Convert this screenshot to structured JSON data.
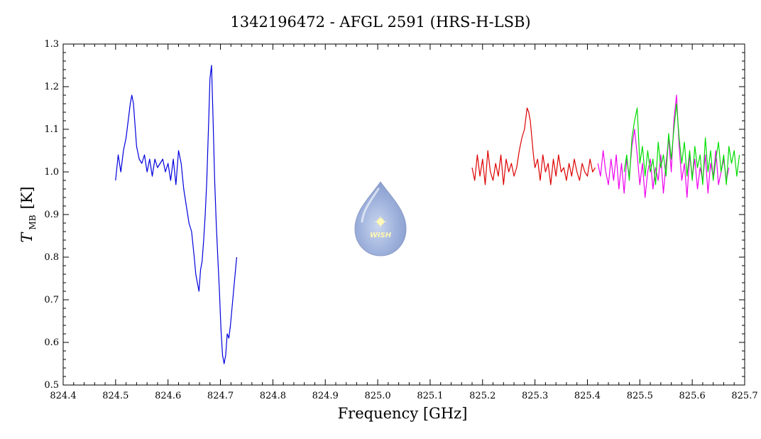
{
  "chart_data": {
    "type": "line",
    "title": "1342196472 - AFGL 2591 (HRS-H-LSB)",
    "xlabel": "Frequency [GHz]",
    "ylabel": {
      "main": "T",
      "sub": "MB",
      "unit": "[K]"
    },
    "xlim": [
      824.4,
      825.7
    ],
    "ylim": [
      0.5,
      1.3
    ],
    "xticks": [
      "824.4",
      "824.5",
      "824.6",
      "824.7",
      "824.8",
      "824.9",
      "825.0",
      "825.1",
      "825.2",
      "825.3",
      "825.4",
      "825.5",
      "825.6",
      "825.7"
    ],
    "yticks": [
      "0.5",
      "0.6",
      "0.7",
      "0.8",
      "0.9",
      "1.0",
      "1.1",
      "1.2",
      "1.3"
    ],
    "grid": false,
    "logo_text": "WISH",
    "series": [
      {
        "color": "#0000dd",
        "x": [
          824.5,
          824.505,
          824.51,
          824.515,
          824.52,
          824.525,
          824.528,
          824.531,
          824.534,
          824.537,
          824.54,
          824.545,
          824.55,
          824.555,
          824.56,
          824.565,
          824.57,
          824.575,
          824.58,
          824.585,
          824.59,
          824.595,
          824.6,
          824.605,
          824.61,
          824.615,
          824.62,
          824.625,
          824.63,
          824.635,
          824.64,
          824.645,
          824.65,
          824.653,
          824.656,
          824.659,
          824.662,
          824.665,
          824.668,
          824.671,
          824.674,
          824.677,
          824.68,
          824.683,
          824.686,
          824.689,
          824.692,
          824.695,
          824.698,
          824.701,
          824.704,
          824.707,
          824.71,
          824.713,
          824.716,
          824.719,
          824.722,
          824.725,
          824.728,
          824.731
        ],
        "y": [
          0.98,
          1.04,
          1.0,
          1.05,
          1.08,
          1.13,
          1.16,
          1.18,
          1.16,
          1.11,
          1.06,
          1.03,
          1.02,
          1.04,
          1.0,
          1.03,
          0.99,
          1.03,
          1.01,
          1.02,
          1.03,
          1.0,
          1.02,
          0.98,
          1.03,
          0.97,
          1.05,
          1.02,
          0.96,
          0.92,
          0.88,
          0.86,
          0.8,
          0.76,
          0.74,
          0.72,
          0.77,
          0.79,
          0.84,
          0.9,
          0.98,
          1.1,
          1.22,
          1.25,
          1.12,
          0.98,
          0.88,
          0.8,
          0.72,
          0.63,
          0.57,
          0.55,
          0.57,
          0.62,
          0.61,
          0.64,
          0.68,
          0.72,
          0.76,
          0.8
        ]
      },
      {
        "color": "#dd0000",
        "x": [
          825.18,
          825.185,
          825.19,
          825.195,
          825.2,
          825.205,
          825.21,
          825.215,
          825.22,
          825.225,
          825.23,
          825.235,
          825.24,
          825.245,
          825.25,
          825.255,
          825.26,
          825.265,
          825.27,
          825.275,
          825.28,
          825.285,
          825.288,
          825.291,
          825.294,
          825.297,
          825.3,
          825.305,
          825.31,
          825.315,
          825.32,
          825.325,
          825.33,
          825.335,
          825.34,
          825.345,
          825.35,
          825.355,
          825.36,
          825.365,
          825.37,
          825.375,
          825.38,
          825.385,
          825.39,
          825.395,
          825.4,
          825.405,
          825.41,
          825.415
        ],
        "y": [
          1.01,
          0.98,
          1.04,
          0.99,
          1.03,
          0.97,
          1.05,
          1.0,
          0.98,
          1.02,
          0.99,
          1.04,
          0.97,
          1.03,
          1.0,
          1.02,
          0.99,
          1.01,
          1.05,
          1.08,
          1.1,
          1.15,
          1.14,
          1.12,
          1.08,
          1.04,
          1.01,
          1.03,
          0.98,
          1.04,
          1.0,
          1.02,
          0.97,
          1.03,
          0.99,
          1.04,
          1.0,
          1.01,
          0.98,
          1.02,
          0.99,
          1.03,
          1.0,
          0.98,
          1.02,
          1.0,
          0.99,
          1.03,
          1.0,
          1.01
        ]
      },
      {
        "color": "#ee00ee",
        "x": [
          825.42,
          825.425,
          825.43,
          825.435,
          825.44,
          825.445,
          825.45,
          825.455,
          825.46,
          825.465,
          825.47,
          825.475,
          825.48,
          825.485,
          825.49,
          825.495,
          825.5,
          825.505,
          825.51,
          825.515,
          825.52,
          825.525,
          825.53,
          825.535,
          825.54,
          825.545,
          825.55,
          825.555,
          825.56,
          825.565,
          825.57,
          825.575,
          825.58,
          825.585,
          825.59,
          825.595,
          825.6,
          825.605,
          825.61,
          825.615,
          825.62,
          825.625,
          825.63,
          825.635,
          825.64,
          825.645,
          825.65,
          825.655,
          825.66,
          825.665,
          825.67
        ],
        "y": [
          1.02,
          0.99,
          1.05,
          1.0,
          0.97,
          1.03,
          0.98,
          1.04,
          0.96,
          1.02,
          0.95,
          1.03,
          0.99,
          1.06,
          1.1,
          1.04,
          0.97,
          1.02,
          0.94,
          1.0,
          1.03,
          0.96,
          1.01,
          0.98,
          1.04,
          0.95,
          1.02,
          1.08,
          1.0,
          1.12,
          1.18,
          1.06,
          0.98,
          1.02,
          0.94,
          1.04,
          0.99,
          1.03,
          0.96,
          1.01,
          0.98,
          1.04,
          0.95,
          1.02,
          0.99,
          1.05,
          0.97,
          1.0,
          1.03,
          0.98,
          1.01
        ]
      },
      {
        "color": "#00dd00",
        "x": [
          825.47,
          825.475,
          825.48,
          825.485,
          825.49,
          825.495,
          825.5,
          825.505,
          825.51,
          825.515,
          825.52,
          825.525,
          825.53,
          825.535,
          825.54,
          825.545,
          825.55,
          825.555,
          825.56,
          825.565,
          825.57,
          825.575,
          825.58,
          825.585,
          825.59,
          825.595,
          825.6,
          825.605,
          825.61,
          825.615,
          825.62,
          825.625,
          825.63,
          825.635,
          825.64,
          825.645,
          825.65,
          825.655,
          825.66,
          825.665,
          825.67,
          825.675,
          825.68,
          825.685,
          825.69
        ],
        "y": [
          1.0,
          1.04,
          0.98,
          1.08,
          1.12,
          1.15,
          1.02,
          1.06,
          0.99,
          1.05,
          1.0,
          1.03,
          0.97,
          1.07,
          1.01,
          1.04,
          0.99,
          1.09,
          1.03,
          1.1,
          1.16,
          1.08,
          1.02,
          1.07,
          0.99,
          1.05,
          0.98,
          1.06,
          1.01,
          1.04,
          0.97,
          1.08,
          1.0,
          1.05,
          0.98,
          1.03,
          1.07,
          1.0,
          1.04,
          0.97,
          1.06,
          1.02,
          1.05,
          0.99,
          1.04
        ]
      }
    ]
  }
}
